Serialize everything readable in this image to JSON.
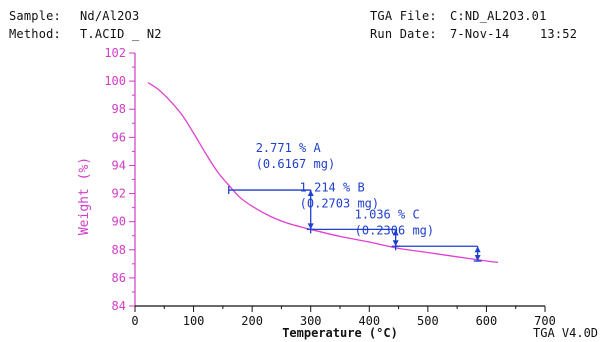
{
  "header": {
    "sample_label": "Sample:",
    "sample_value": "Nd/Al2O3",
    "method_label": "Method:",
    "method_value": "T.ACID _ N2",
    "file_label": "TGA File:",
    "file_value": "C:ND_AL2O3.01",
    "date_label": "Run Date:",
    "date_value": "7-Nov-14",
    "time_value": "13:52"
  },
  "footer": {
    "version": "TGA V4.0D"
  },
  "colors": {
    "curve": "#e040d0",
    "axis_y": "#d23cc8",
    "annotation": "#1f3fd0",
    "axis": "#111111"
  },
  "chart_data": {
    "type": "line",
    "xlabel": "Temperature (°C)",
    "ylabel": "Weight (%)",
    "xlim": [
      0,
      700
    ],
    "ylim": [
      84,
      102
    ],
    "x_ticks": [
      0,
      100,
      200,
      300,
      400,
      500,
      600,
      700
    ],
    "y_ticks": [
      84,
      86,
      88,
      90,
      92,
      94,
      96,
      98,
      100,
      102
    ],
    "grid": false,
    "series": [
      {
        "x": [
          22,
          40,
          60,
          80,
          100,
          120,
          140,
          160,
          180,
          200,
          230,
          260,
          300,
          350,
          400,
          450,
          500,
          550,
          600,
          620
        ],
        "values": [
          99.9,
          99.4,
          98.6,
          97.6,
          96.3,
          94.9,
          93.6,
          92.6,
          91.7,
          91.1,
          90.4,
          89.9,
          89.45,
          88.95,
          88.55,
          88.1,
          87.8,
          87.5,
          87.2,
          87.1
        ]
      }
    ],
    "annotations": [
      {
        "percent_label": "2.771 % A",
        "mass_label": "(0.6167 mg)",
        "x_start": 160,
        "x_end": 300,
        "y_top": 92.25,
        "y_bottom": 89.45
      },
      {
        "percent_label": "1.214 % B",
        "mass_label": "(0.2703 mg)",
        "x_start": 300,
        "x_end": 445,
        "y_top": 89.45,
        "y_bottom": 88.25
      },
      {
        "percent_label": "1.036 % C",
        "mass_label": "(0.2306 mg)",
        "x_start": 445,
        "x_end": 585,
        "y_top": 88.25,
        "y_bottom": 87.2
      }
    ]
  }
}
